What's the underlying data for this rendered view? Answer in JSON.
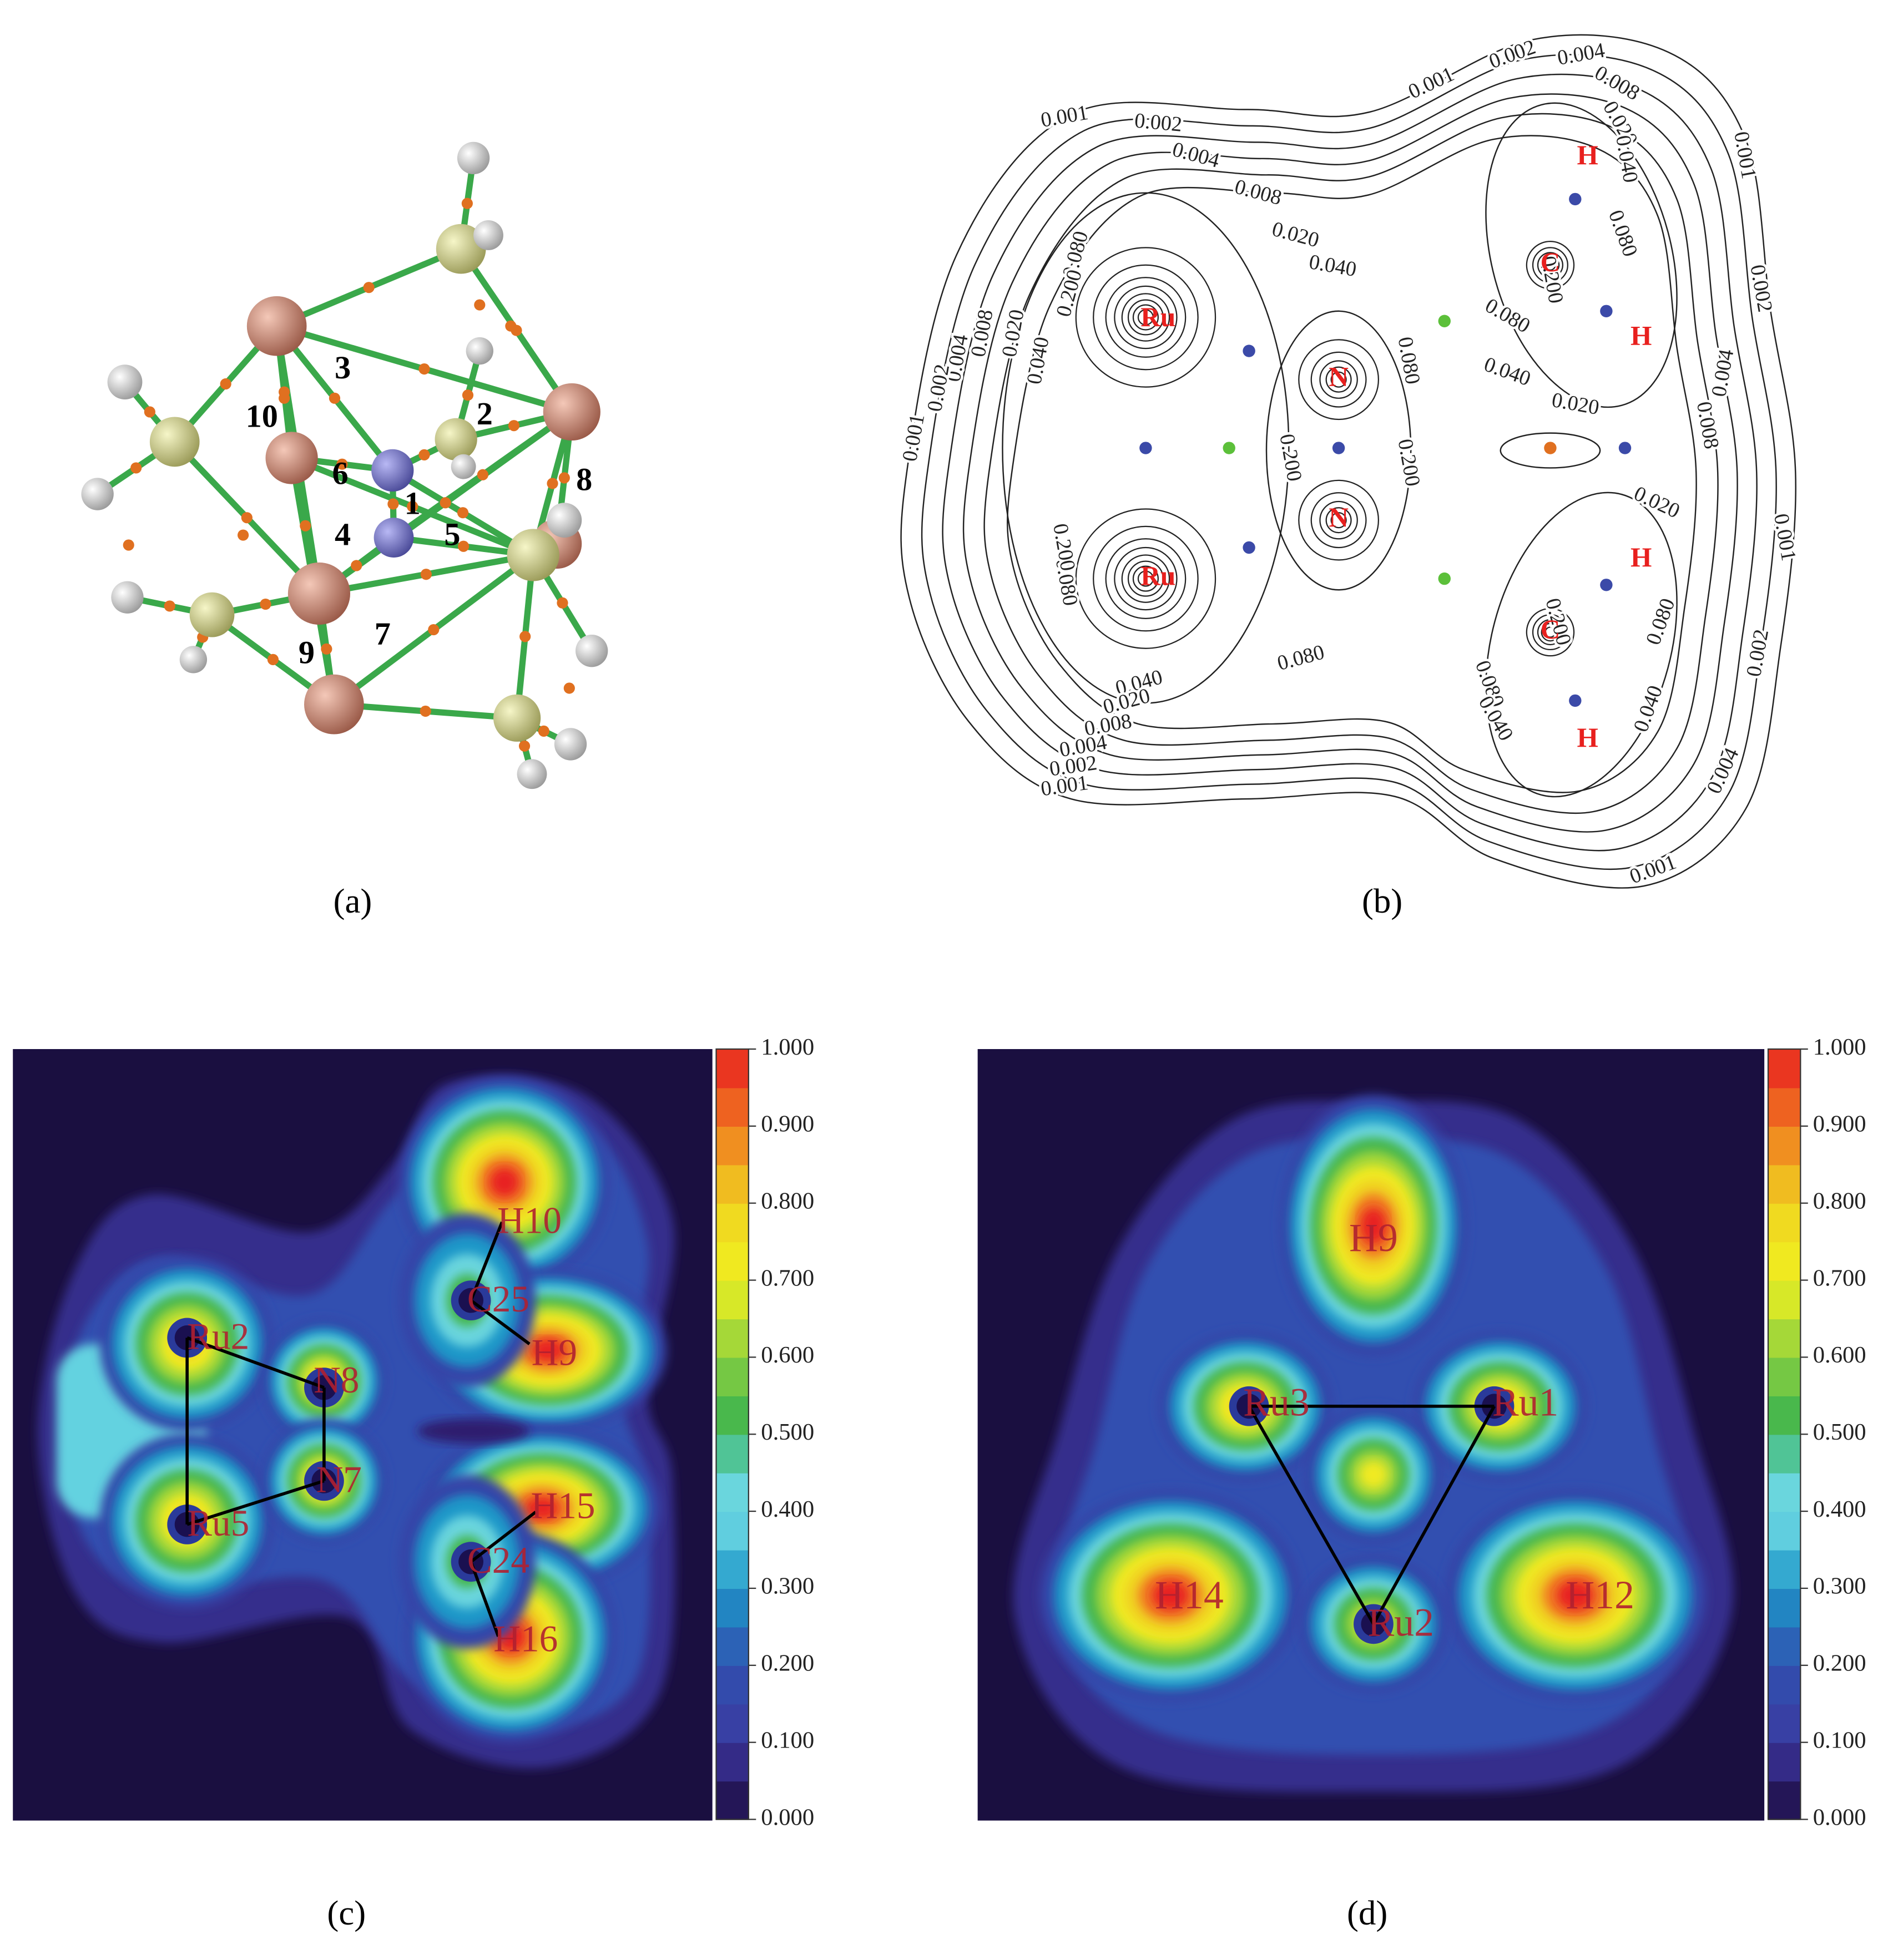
{
  "panel_a": {
    "caption": "(a)",
    "labels": [
      "1",
      "2",
      "3",
      "4",
      "5",
      "6",
      "7",
      "8",
      "9",
      "10"
    ]
  },
  "panel_b": {
    "caption": "(b)",
    "atoms": [
      "Ru",
      "Ru",
      "N",
      "N",
      "C",
      "C",
      "H",
      "H",
      "H",
      "H"
    ],
    "contour_labels": [
      "0.001",
      "0.002",
      "0.004",
      "0.008",
      "0.020",
      "0.040",
      "0.001",
      "0.002",
      "0.004",
      "0.008",
      "0.020",
      "0.040",
      "0.080",
      "0.200",
      "0.020",
      "0.040",
      "0.008",
      "0.004",
      "0.002",
      "0.001",
      "0.080",
      "0.080",
      "0.040",
      "0.020",
      "0.080",
      "0.001",
      "0.002",
      "0.004",
      "0.008",
      "0.200",
      "0.200",
      "0.020",
      "0.001",
      "0.002",
      "0.004",
      "0.001",
      "0.080",
      "0.040",
      "0.080",
      "0.040",
      "0.080",
      "0.040",
      "0.020",
      "0.008",
      "0.004",
      "0.002",
      "0.001",
      "0.080",
      "0.200",
      "0.200",
      "0.200"
    ]
  },
  "panel_c": {
    "caption": "(c)",
    "atoms": [
      "Ru2",
      "N8",
      "N7",
      "Ru5",
      "C25",
      "H10",
      "H9",
      "H15",
      "C24",
      "H16"
    ],
    "colorbar": [
      "1.000",
      "0.900",
      "0.800",
      "0.700",
      "0.600",
      "0.500",
      "0.400",
      "0.300",
      "0.200",
      "0.100",
      "0.000"
    ]
  },
  "panel_d": {
    "caption": "(d)",
    "atoms": [
      "H9",
      "Ru3",
      "Ru1",
      "H14",
      "Ru2",
      "H12"
    ],
    "colorbar": [
      "1.000",
      "0.900",
      "0.800",
      "0.700",
      "0.600",
      "0.500",
      "0.400",
      "0.300",
      "0.200",
      "0.100",
      "0.000"
    ]
  }
}
